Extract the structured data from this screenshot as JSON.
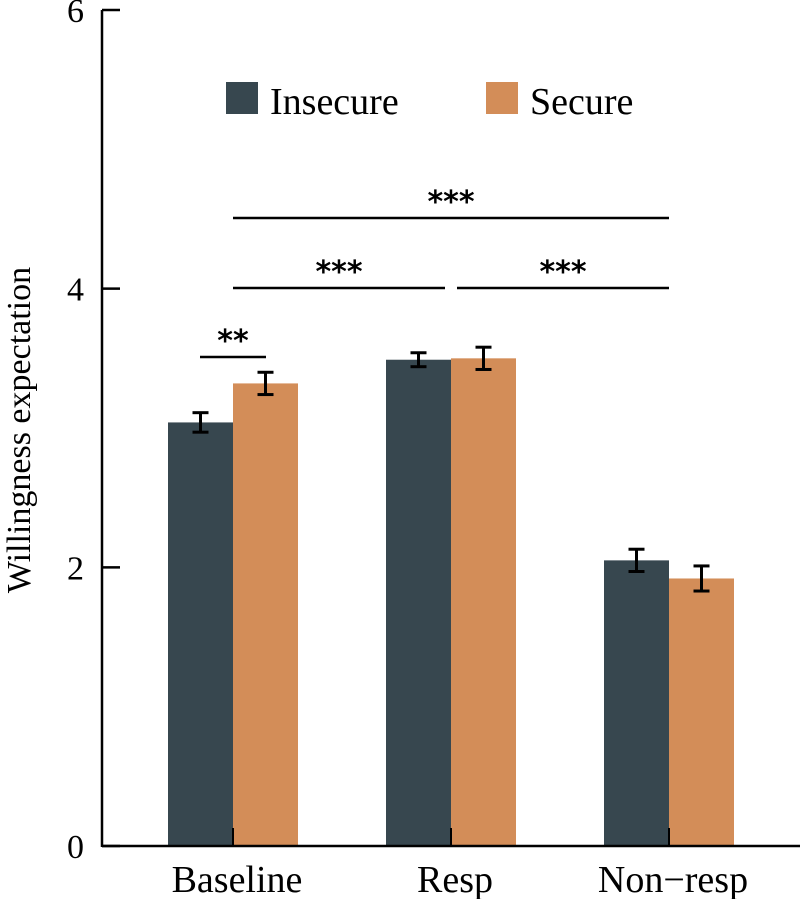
{
  "chart_data": {
    "type": "bar",
    "title": "",
    "xlabel": "",
    "ylabel": "Willingness expectation",
    "ylim": [
      0,
      6
    ],
    "yticks": [
      0,
      2,
      4,
      6
    ],
    "ytick_labels": [
      "0",
      "2",
      "4",
      "6"
    ],
    "grid": false,
    "legend_position": "top-center",
    "categories": [
      "Baseline",
      "Resp",
      "Non−resp"
    ],
    "series": [
      {
        "name": "Insecure",
        "color": "#37474f",
        "values": [
          3.04,
          3.49,
          2.05
        ],
        "errors": [
          0.07,
          0.05,
          0.08
        ]
      },
      {
        "name": "Secure",
        "color": "#d38d58",
        "values": [
          3.32,
          3.5,
          1.92
        ],
        "errors": [
          0.08,
          0.08,
          0.09
        ]
      }
    ],
    "significance": [
      {
        "label": "**",
        "from": {
          "category": 0,
          "series": 0
        },
        "to": {
          "category": 0,
          "series": 1
        }
      },
      {
        "label": "***",
        "from": {
          "category": 0,
          "series": "center"
        },
        "to": {
          "category": 1,
          "series": "center"
        }
      },
      {
        "label": "***",
        "from": {
          "category": 1,
          "series": "center"
        },
        "to": {
          "category": 2,
          "series": "center"
        }
      },
      {
        "label": "***",
        "from": {
          "category": 0,
          "series": "center"
        },
        "to": {
          "category": 2,
          "series": "center"
        }
      }
    ]
  }
}
